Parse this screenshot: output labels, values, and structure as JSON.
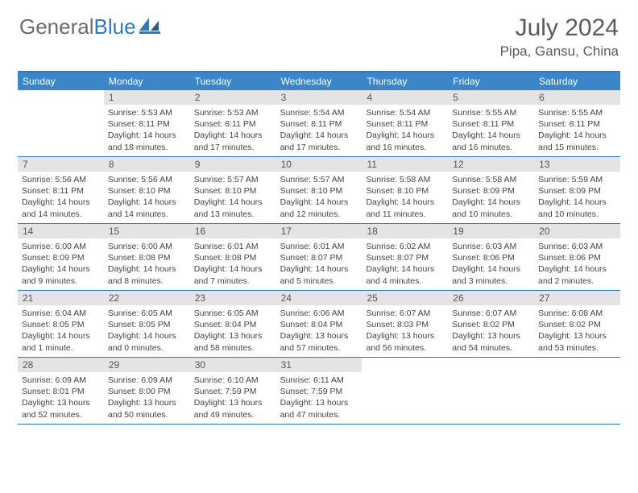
{
  "logo": {
    "text_gray": "General",
    "text_blue": "Blue"
  },
  "title": "July 2024",
  "location": "Pipa, Gansu, China",
  "colors": {
    "header_bar": "#3a86c8",
    "border": "#2d79c1",
    "daynum_bg": "#e4e4e4",
    "text_gray": "#5a5a5a",
    "body_text": "#444444",
    "white": "#ffffff"
  },
  "weekdays": [
    "Sunday",
    "Monday",
    "Tuesday",
    "Wednesday",
    "Thursday",
    "Friday",
    "Saturday"
  ],
  "weeks": [
    [
      {
        "n": "",
        "sr": "",
        "ss": "",
        "dl": ""
      },
      {
        "n": "1",
        "sr": "Sunrise: 5:53 AM",
        "ss": "Sunset: 8:11 PM",
        "dl": "Daylight: 14 hours and 18 minutes."
      },
      {
        "n": "2",
        "sr": "Sunrise: 5:53 AM",
        "ss": "Sunset: 8:11 PM",
        "dl": "Daylight: 14 hours and 17 minutes."
      },
      {
        "n": "3",
        "sr": "Sunrise: 5:54 AM",
        "ss": "Sunset: 8:11 PM",
        "dl": "Daylight: 14 hours and 17 minutes."
      },
      {
        "n": "4",
        "sr": "Sunrise: 5:54 AM",
        "ss": "Sunset: 8:11 PM",
        "dl": "Daylight: 14 hours and 16 minutes."
      },
      {
        "n": "5",
        "sr": "Sunrise: 5:55 AM",
        "ss": "Sunset: 8:11 PM",
        "dl": "Daylight: 14 hours and 16 minutes."
      },
      {
        "n": "6",
        "sr": "Sunrise: 5:55 AM",
        "ss": "Sunset: 8:11 PM",
        "dl": "Daylight: 14 hours and 15 minutes."
      }
    ],
    [
      {
        "n": "7",
        "sr": "Sunrise: 5:56 AM",
        "ss": "Sunset: 8:11 PM",
        "dl": "Daylight: 14 hours and 14 minutes."
      },
      {
        "n": "8",
        "sr": "Sunrise: 5:56 AM",
        "ss": "Sunset: 8:10 PM",
        "dl": "Daylight: 14 hours and 14 minutes."
      },
      {
        "n": "9",
        "sr": "Sunrise: 5:57 AM",
        "ss": "Sunset: 8:10 PM",
        "dl": "Daylight: 14 hours and 13 minutes."
      },
      {
        "n": "10",
        "sr": "Sunrise: 5:57 AM",
        "ss": "Sunset: 8:10 PM",
        "dl": "Daylight: 14 hours and 12 minutes."
      },
      {
        "n": "11",
        "sr": "Sunrise: 5:58 AM",
        "ss": "Sunset: 8:10 PM",
        "dl": "Daylight: 14 hours and 11 minutes."
      },
      {
        "n": "12",
        "sr": "Sunrise: 5:58 AM",
        "ss": "Sunset: 8:09 PM",
        "dl": "Daylight: 14 hours and 10 minutes."
      },
      {
        "n": "13",
        "sr": "Sunrise: 5:59 AM",
        "ss": "Sunset: 8:09 PM",
        "dl": "Daylight: 14 hours and 10 minutes."
      }
    ],
    [
      {
        "n": "14",
        "sr": "Sunrise: 6:00 AM",
        "ss": "Sunset: 8:09 PM",
        "dl": "Daylight: 14 hours and 9 minutes."
      },
      {
        "n": "15",
        "sr": "Sunrise: 6:00 AM",
        "ss": "Sunset: 8:08 PM",
        "dl": "Daylight: 14 hours and 8 minutes."
      },
      {
        "n": "16",
        "sr": "Sunrise: 6:01 AM",
        "ss": "Sunset: 8:08 PM",
        "dl": "Daylight: 14 hours and 7 minutes."
      },
      {
        "n": "17",
        "sr": "Sunrise: 6:01 AM",
        "ss": "Sunset: 8:07 PM",
        "dl": "Daylight: 14 hours and 5 minutes."
      },
      {
        "n": "18",
        "sr": "Sunrise: 6:02 AM",
        "ss": "Sunset: 8:07 PM",
        "dl": "Daylight: 14 hours and 4 minutes."
      },
      {
        "n": "19",
        "sr": "Sunrise: 6:03 AM",
        "ss": "Sunset: 8:06 PM",
        "dl": "Daylight: 14 hours and 3 minutes."
      },
      {
        "n": "20",
        "sr": "Sunrise: 6:03 AM",
        "ss": "Sunset: 8:06 PM",
        "dl": "Daylight: 14 hours and 2 minutes."
      }
    ],
    [
      {
        "n": "21",
        "sr": "Sunrise: 6:04 AM",
        "ss": "Sunset: 8:05 PM",
        "dl": "Daylight: 14 hours and 1 minute."
      },
      {
        "n": "22",
        "sr": "Sunrise: 6:05 AM",
        "ss": "Sunset: 8:05 PM",
        "dl": "Daylight: 14 hours and 0 minutes."
      },
      {
        "n": "23",
        "sr": "Sunrise: 6:05 AM",
        "ss": "Sunset: 8:04 PM",
        "dl": "Daylight: 13 hours and 58 minutes."
      },
      {
        "n": "24",
        "sr": "Sunrise: 6:06 AM",
        "ss": "Sunset: 8:04 PM",
        "dl": "Daylight: 13 hours and 57 minutes."
      },
      {
        "n": "25",
        "sr": "Sunrise: 6:07 AM",
        "ss": "Sunset: 8:03 PM",
        "dl": "Daylight: 13 hours and 56 minutes."
      },
      {
        "n": "26",
        "sr": "Sunrise: 6:07 AM",
        "ss": "Sunset: 8:02 PM",
        "dl": "Daylight: 13 hours and 54 minutes."
      },
      {
        "n": "27",
        "sr": "Sunrise: 6:08 AM",
        "ss": "Sunset: 8:02 PM",
        "dl": "Daylight: 13 hours and 53 minutes."
      }
    ],
    [
      {
        "n": "28",
        "sr": "Sunrise: 6:09 AM",
        "ss": "Sunset: 8:01 PM",
        "dl": "Daylight: 13 hours and 52 minutes."
      },
      {
        "n": "29",
        "sr": "Sunrise: 6:09 AM",
        "ss": "Sunset: 8:00 PM",
        "dl": "Daylight: 13 hours and 50 minutes."
      },
      {
        "n": "30",
        "sr": "Sunrise: 6:10 AM",
        "ss": "Sunset: 7:59 PM",
        "dl": "Daylight: 13 hours and 49 minutes."
      },
      {
        "n": "31",
        "sr": "Sunrise: 6:11 AM",
        "ss": "Sunset: 7:59 PM",
        "dl": "Daylight: 13 hours and 47 minutes."
      },
      {
        "n": "",
        "sr": "",
        "ss": "",
        "dl": ""
      },
      {
        "n": "",
        "sr": "",
        "ss": "",
        "dl": ""
      },
      {
        "n": "",
        "sr": "",
        "ss": "",
        "dl": ""
      }
    ]
  ]
}
